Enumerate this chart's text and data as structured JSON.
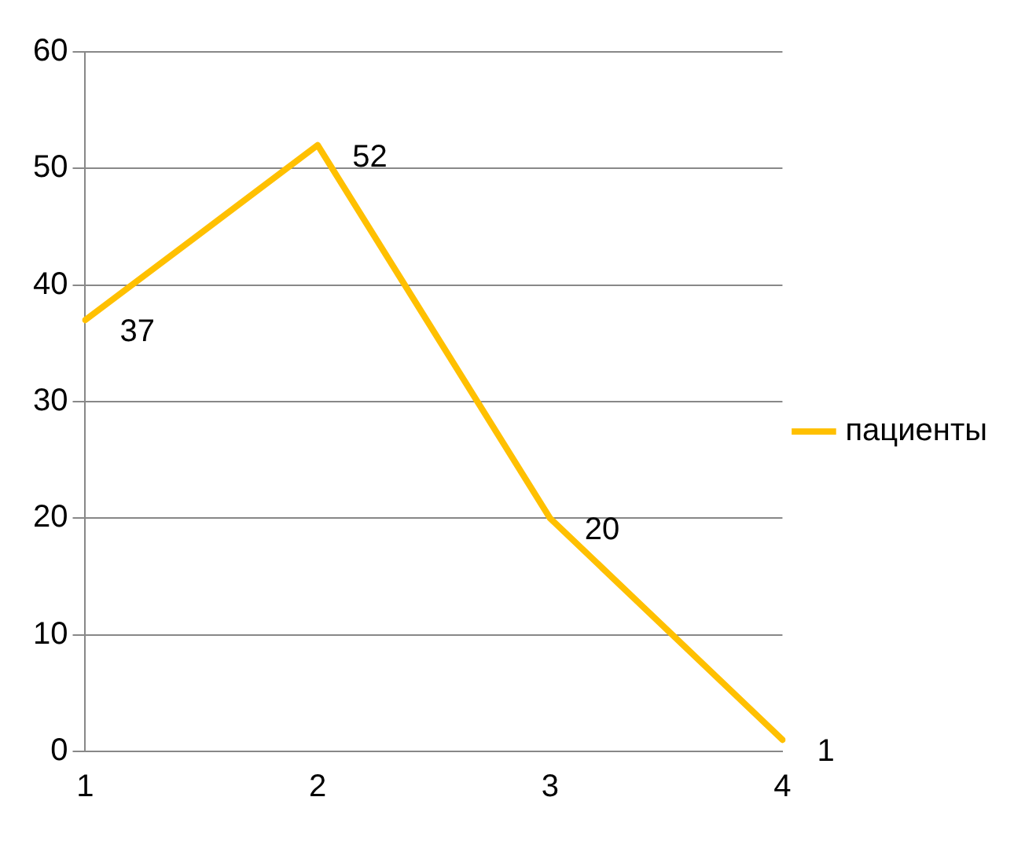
{
  "chart_data": {
    "type": "line",
    "categories": [
      "1",
      "2",
      "3",
      "4"
    ],
    "series": [
      {
        "name": "пациенты",
        "color": "#ffc000",
        "values": [
          37,
          52,
          20,
          1
        ]
      }
    ],
    "ylim": [
      0,
      60
    ],
    "yticks": [
      0,
      10,
      20,
      30,
      40,
      50,
      60
    ],
    "grid": "y",
    "legend": "right",
    "marker": "none",
    "line_style": "solid",
    "data_labels": true
  }
}
